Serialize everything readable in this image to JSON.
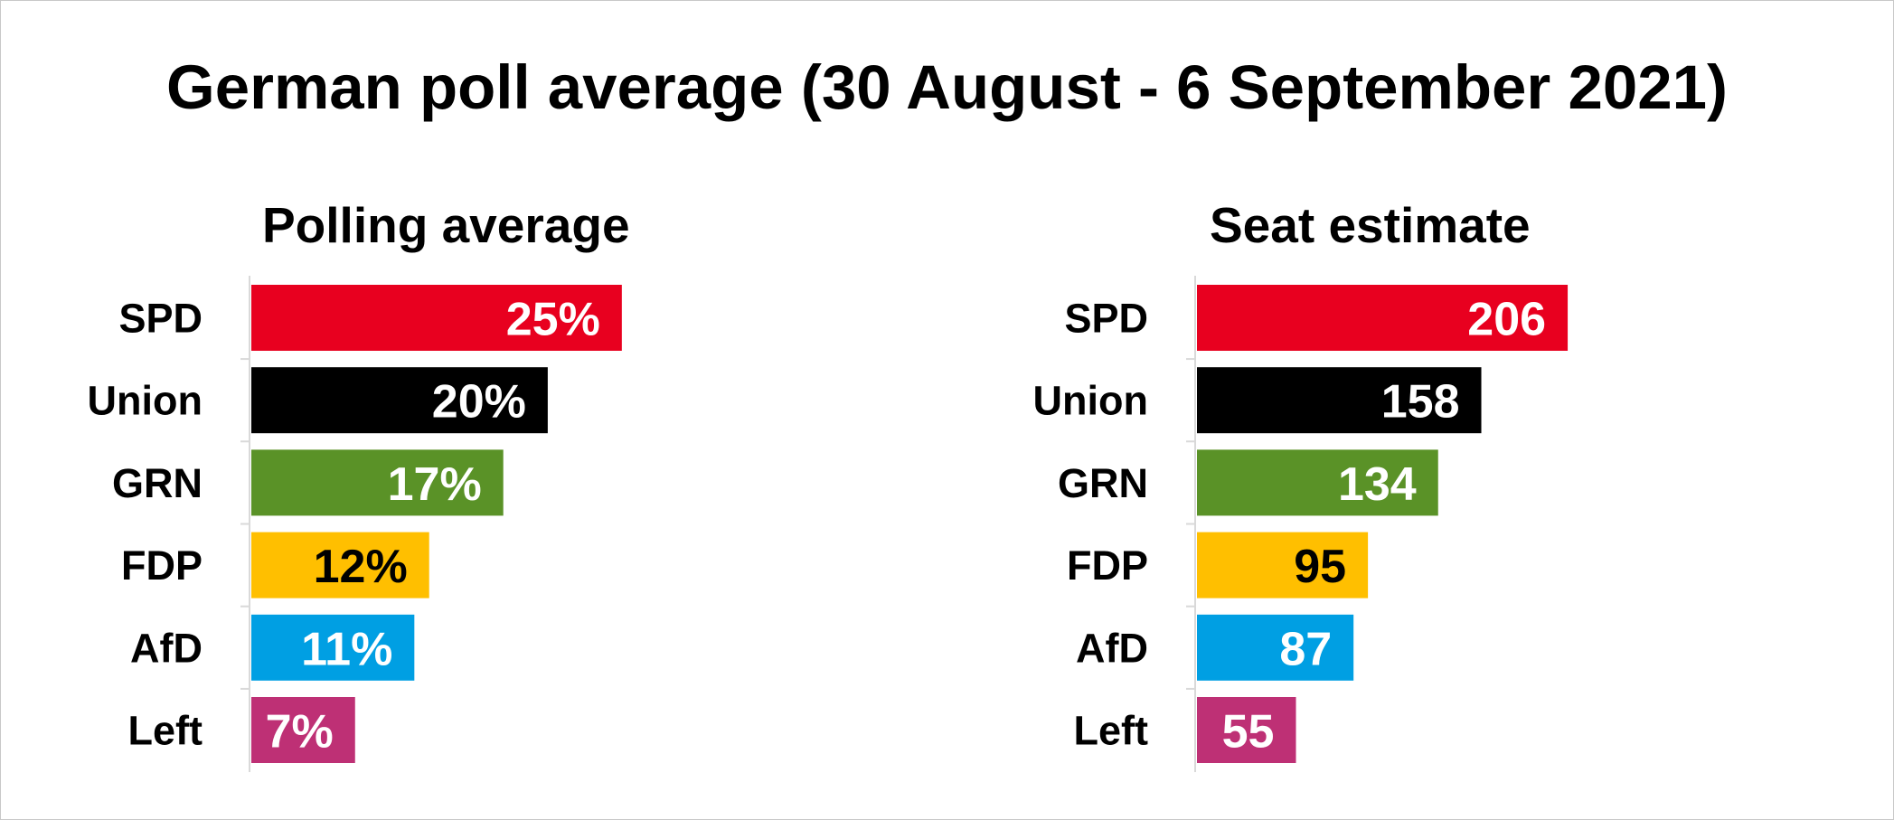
{
  "title": "German poll average (30 August - 6 September 2021)",
  "chart_data": [
    {
      "type": "bar",
      "orientation": "horizontal",
      "title": "Polling average",
      "categories": [
        "SPD",
        "Union",
        "GRN",
        "FDP",
        "AfD",
        "Left"
      ],
      "values": [
        25,
        20,
        17,
        12,
        11,
        7
      ],
      "value_labels": [
        "25%",
        "20%",
        "17%",
        "12%",
        "11%",
        "7%"
      ],
      "colors": [
        "#e8001f",
        "#000000",
        "#5a9227",
        "#ffbf00",
        "#009fe3",
        "#be3075"
      ],
      "label_colors": [
        "#ffffff",
        "#ffffff",
        "#ffffff",
        "#000000",
        "#ffffff",
        "#ffffff"
      ],
      "xlim": [
        0,
        33.55
      ],
      "grid": false
    },
    {
      "type": "bar",
      "orientation": "horizontal",
      "title": "Seat estimate",
      "categories": [
        "SPD",
        "Union",
        "GRN",
        "FDP",
        "AfD",
        "Left"
      ],
      "values": [
        206,
        158,
        134,
        95,
        87,
        55
      ],
      "value_labels": [
        "206",
        "158",
        "134",
        "95",
        "87",
        "55"
      ],
      "colors": [
        "#e8001f",
        "#000000",
        "#5a9227",
        "#ffbf00",
        "#009fe3",
        "#be3075"
      ],
      "label_colors": [
        "#ffffff",
        "#ffffff",
        "#ffffff",
        "#000000",
        "#ffffff",
        "#ffffff"
      ],
      "xlim": [
        0,
        276.3
      ],
      "grid": false
    }
  ]
}
